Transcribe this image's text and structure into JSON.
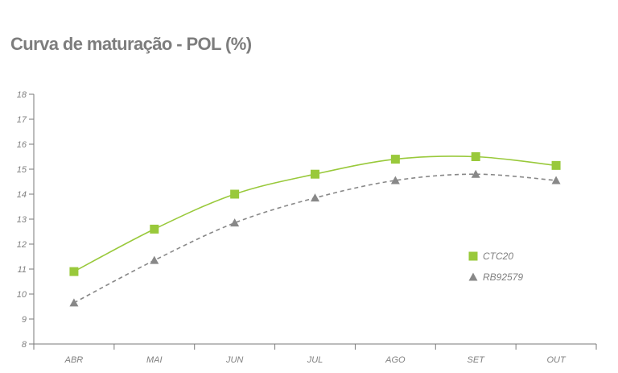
{
  "title": "Curva de maturação - POL (%)",
  "chart_data": {
    "type": "line",
    "title": "Curva de maturação - POL (%)",
    "categories": [
      "ABR",
      "MAI",
      "JUN",
      "JUL",
      "AGO",
      "SET",
      "OUT"
    ],
    "ylim": [
      8,
      18
    ],
    "yticks": [
      8,
      9,
      10,
      11,
      12,
      13,
      14,
      15,
      16,
      17,
      18
    ],
    "grid": false,
    "legend_position": "right",
    "series": [
      {
        "name": "CTC20",
        "marker": "square",
        "line_style": "solid",
        "color": "#99c93b",
        "values": [
          10.9,
          12.6,
          14.0,
          14.8,
          15.4,
          15.5,
          15.15
        ]
      },
      {
        "name": "RB92579",
        "marker": "triangle",
        "line_style": "dashed",
        "color": "#888888",
        "values": [
          9.65,
          11.35,
          12.85,
          13.85,
          14.55,
          14.8,
          14.55
        ]
      }
    ]
  }
}
